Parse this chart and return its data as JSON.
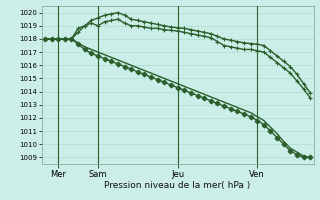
{
  "title": "Pression niveau de la mer( hPa )",
  "bg_color": "#cceee8",
  "grid_color": "#aaddcc",
  "line_color": "#2a5e2a",
  "ylim": [
    1008.5,
    1020.5
  ],
  "yticks": [
    1009,
    1010,
    1011,
    1012,
    1013,
    1014,
    1015,
    1016,
    1017,
    1018,
    1019,
    1020
  ],
  "day_labels": [
    "Mer",
    "Sam",
    "Jeu",
    "Ven"
  ],
  "day_positions": [
    2,
    8,
    20,
    32
  ],
  "n_points": 41,
  "series": [
    {
      "values": [
        1018.0,
        1018.0,
        1018.0,
        1018.0,
        1018.0,
        1018.5,
        1019.0,
        1019.2,
        1019.0,
        1019.3,
        1019.4,
        1019.5,
        1019.2,
        1019.0,
        1019.0,
        1018.9,
        1018.8,
        1018.8,
        1018.7,
        1018.65,
        1018.6,
        1018.5,
        1018.4,
        1018.3,
        1018.2,
        1018.1,
        1017.8,
        1017.5,
        1017.4,
        1017.3,
        1017.2,
        1017.2,
        1017.1,
        1017.0,
        1016.6,
        1016.2,
        1015.8,
        1015.4,
        1014.8,
        1014.2,
        1013.5
      ],
      "marker": "+",
      "markersize": 3.5,
      "lw": 1.0
    },
    {
      "values": [
        1018.0,
        1018.0,
        1018.0,
        1018.0,
        1018.0,
        1018.8,
        1019.0,
        1019.4,
        1019.6,
        1019.8,
        1019.9,
        1020.0,
        1019.8,
        1019.5,
        1019.4,
        1019.3,
        1019.2,
        1019.1,
        1019.0,
        1018.9,
        1018.85,
        1018.8,
        1018.7,
        1018.6,
        1018.5,
        1018.4,
        1018.2,
        1018.0,
        1017.9,
        1017.8,
        1017.7,
        1017.65,
        1017.6,
        1017.5,
        1017.1,
        1016.7,
        1016.3,
        1015.9,
        1015.3,
        1014.6,
        1013.9
      ],
      "marker": "+",
      "markersize": 3.5,
      "lw": 1.0
    },
    {
      "values": [
        1018.0,
        1018.0,
        1018.0,
        1018.0,
        1018.0,
        1017.6,
        1017.2,
        1016.9,
        1016.7,
        1016.5,
        1016.3,
        1016.1,
        1015.9,
        1015.7,
        1015.5,
        1015.3,
        1015.1,
        1014.9,
        1014.7,
        1014.5,
        1014.3,
        1014.1,
        1013.9,
        1013.7,
        1013.5,
        1013.3,
        1013.1,
        1012.9,
        1012.7,
        1012.5,
        1012.3,
        1012.1,
        1011.8,
        1011.5,
        1011.0,
        1010.5,
        1010.0,
        1009.5,
        1009.2,
        1009.0,
        1009.0
      ],
      "marker": "D",
      "markersize": 2.5,
      "lw": 1.0
    },
    {
      "values": [
        1018.0,
        1018.0,
        1018.0,
        1018.0,
        1018.0,
        1017.7,
        1017.4,
        1017.2,
        1017.0,
        1016.8,
        1016.6,
        1016.4,
        1016.2,
        1016.0,
        1015.8,
        1015.6,
        1015.4,
        1015.2,
        1015.0,
        1014.8,
        1014.6,
        1014.4,
        1014.2,
        1014.0,
        1013.8,
        1013.6,
        1013.4,
        1013.2,
        1013.0,
        1012.8,
        1012.6,
        1012.4,
        1012.1,
        1011.8,
        1011.3,
        1010.8,
        1010.2,
        1009.7,
        1009.4,
        1009.1,
        1009.0
      ],
      "marker": null,
      "markersize": 0,
      "lw": 1.0
    }
  ]
}
